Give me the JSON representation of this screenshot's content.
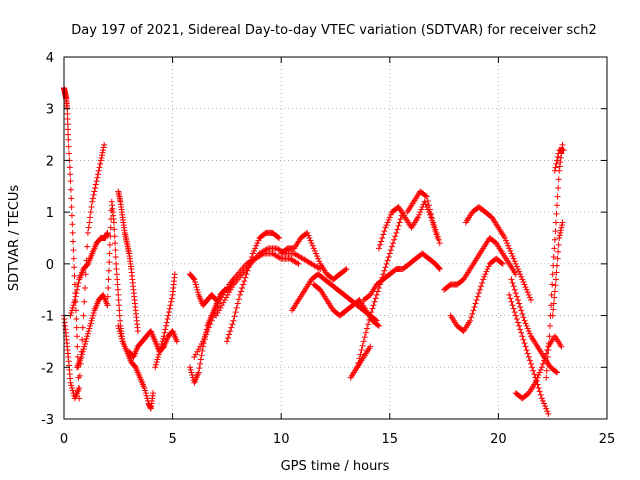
{
  "chart_data": {
    "type": "scatter",
    "title": "Day 197 of 2021, Sidereal Day-to-day VTEC variation (SDTVAR) for receiver sch2",
    "xlabel": "GPS time / hours",
    "ylabel": "SDTVAR / TECUs",
    "xlim": [
      0,
      25
    ],
    "ylim": [
      -3,
      4
    ],
    "x_ticks": [
      "0",
      "5",
      "10",
      "15",
      "20",
      "25"
    ],
    "y_ticks": [
      "-3",
      "-2",
      "-1",
      "0",
      "1",
      "2",
      "3",
      "4"
    ],
    "x_tick_values": [
      0,
      5,
      10,
      15,
      20,
      25
    ],
    "y_tick_values": [
      -3,
      -2,
      -1,
      0,
      1,
      2,
      3,
      4
    ],
    "grid": true,
    "marker": "+",
    "color": "#ff0000",
    "series": [
      {
        "name": "trace-1",
        "x": [
          0.0,
          0.05,
          0.1,
          0.15,
          0.2,
          0.3,
          0.4,
          0.5,
          0.6,
          0.7
        ],
        "y": [
          3.4,
          3.3,
          3.2,
          3.0,
          2.4,
          1.6,
          0.6,
          -0.4,
          -1.4,
          -2.6
        ]
      },
      {
        "name": "trace-2",
        "x": [
          0.0,
          0.1,
          0.2,
          0.3,
          0.5,
          0.7,
          0.9,
          1.1,
          1.3,
          1.5,
          1.7,
          1.85
        ],
        "y": [
          -1.0,
          -1.4,
          -1.8,
          -2.3,
          -2.6,
          -2.4,
          -1.0,
          0.6,
          1.2,
          1.6,
          2.0,
          2.3
        ]
      },
      {
        "name": "trace-3",
        "x": [
          0.3,
          0.5,
          0.7,
          0.9,
          1.1,
          1.3,
          1.5,
          1.7,
          1.9,
          2.0
        ],
        "y": [
          -1.0,
          -0.7,
          -0.3,
          -0.1,
          0.0,
          0.2,
          0.4,
          0.5,
          0.5,
          0.6
        ]
      },
      {
        "name": "trace-4",
        "x": [
          0.6,
          0.8,
          1.0,
          1.2,
          1.4,
          1.6,
          1.8,
          2.0
        ],
        "y": [
          -2.0,
          -1.8,
          -1.5,
          -1.2,
          -0.9,
          -0.7,
          -0.6,
          -0.8
        ]
      },
      {
        "name": "trace-5",
        "x": [
          2.0,
          2.1,
          2.2,
          2.3,
          2.4,
          2.5,
          2.6,
          2.7
        ],
        "y": [
          -0.8,
          0.2,
          1.2,
          0.8,
          0.0,
          -0.6,
          -1.2,
          -1.5
        ]
      },
      {
        "name": "trace-6",
        "x": [
          2.5,
          2.6,
          2.7,
          2.8,
          2.9,
          3.0,
          3.1,
          3.2,
          3.3,
          3.4
        ],
        "y": [
          1.4,
          1.2,
          0.9,
          0.6,
          0.4,
          0.2,
          -0.1,
          -0.5,
          -0.9,
          -1.3
        ]
      },
      {
        "name": "trace-7",
        "x": [
          2.5,
          2.7,
          2.9,
          3.1,
          3.3,
          3.5,
          3.7,
          3.9,
          4.0,
          4.1
        ],
        "y": [
          -1.2,
          -1.5,
          -1.7,
          -1.9,
          -2.0,
          -2.2,
          -2.4,
          -2.7,
          -2.8,
          -2.5
        ]
      },
      {
        "name": "trace-8",
        "x": [
          3.0,
          3.2,
          3.4,
          3.6,
          3.8,
          4.0,
          4.2,
          4.4,
          4.6,
          4.8,
          5.0,
          5.2
        ],
        "y": [
          -1.7,
          -1.8,
          -1.6,
          -1.5,
          -1.4,
          -1.3,
          -1.5,
          -1.7,
          -1.6,
          -1.4,
          -1.3,
          -1.5
        ]
      },
      {
        "name": "trace-9",
        "x": [
          4.2,
          4.4,
          4.6,
          4.8,
          5.0,
          5.1
        ],
        "y": [
          -2.0,
          -1.7,
          -1.4,
          -1.0,
          -0.6,
          -0.2
        ]
      },
      {
        "name": "trace-10",
        "x": [
          5.8,
          6.0,
          6.2,
          6.4,
          6.6,
          6.8,
          7.0,
          7.2,
          7.4,
          7.6,
          7.8
        ],
        "y": [
          -2.0,
          -2.3,
          -2.1,
          -1.6,
          -1.2,
          -1.0,
          -0.8,
          -0.6,
          -0.5,
          -0.5,
          -0.3
        ]
      },
      {
        "name": "trace-11",
        "x": [
          5.8,
          6.0,
          6.2,
          6.4,
          6.6,
          6.8,
          7.0
        ],
        "y": [
          -0.2,
          -0.3,
          -0.6,
          -0.8,
          -0.7,
          -0.6,
          -0.7
        ]
      },
      {
        "name": "trace-12",
        "x": [
          6.0,
          6.4,
          6.8,
          7.2,
          7.6,
          8.0,
          8.4,
          8.8,
          9.2,
          9.6,
          10.0,
          10.4,
          10.8
        ],
        "y": [
          -1.8,
          -1.5,
          -1.1,
          -0.7,
          -0.4,
          -0.2,
          0.0,
          0.1,
          0.2,
          0.2,
          0.1,
          0.1,
          0.0
        ]
      },
      {
        "name": "trace-13",
        "x": [
          7.0,
          7.4,
          7.8,
          8.2,
          8.6,
          9.0,
          9.4,
          9.8,
          10.2,
          10.6,
          11.0,
          11.4,
          11.8
        ],
        "y": [
          -1.0,
          -0.7,
          -0.4,
          -0.2,
          0.0,
          0.2,
          0.3,
          0.3,
          0.2,
          0.2,
          0.1,
          0.0,
          -0.1
        ]
      },
      {
        "name": "trace-14",
        "x": [
          7.5,
          7.8,
          8.1,
          8.4,
          8.7,
          9.0,
          9.3,
          9.6,
          9.9
        ],
        "y": [
          -1.5,
          -1.1,
          -0.6,
          -0.2,
          0.2,
          0.5,
          0.6,
          0.6,
          0.5
        ]
      },
      {
        "name": "trace-15",
        "x": [
          10.0,
          10.3,
          10.6,
          10.9,
          11.2,
          11.5,
          11.8,
          12.1,
          12.4,
          12.7,
          13.0
        ],
        "y": [
          0.2,
          0.3,
          0.3,
          0.5,
          0.6,
          0.3,
          0.0,
          -0.2,
          -0.3,
          -0.2,
          -0.1
        ]
      },
      {
        "name": "trace-16",
        "x": [
          10.5,
          10.8,
          11.1,
          11.4,
          11.7,
          12.0,
          12.3,
          12.6,
          12.9,
          13.2,
          13.5,
          13.8,
          14.1,
          14.4
        ],
        "y": [
          -0.9,
          -0.7,
          -0.5,
          -0.3,
          -0.2,
          -0.3,
          -0.4,
          -0.5,
          -0.6,
          -0.7,
          -0.8,
          -0.9,
          -1.0,
          -1.1
        ]
      },
      {
        "name": "trace-17",
        "x": [
          11.5,
          11.8,
          12.1,
          12.4,
          12.7,
          13.0,
          13.3,
          13.6,
          13.9,
          14.2,
          14.5
        ],
        "y": [
          -0.4,
          -0.5,
          -0.7,
          -0.9,
          -1.0,
          -0.9,
          -0.8,
          -0.7,
          -0.9,
          -1.1,
          -1.2
        ]
      },
      {
        "name": "trace-18",
        "x": [
          13.2,
          13.5,
          13.8,
          14.1
        ],
        "y": [
          -2.2,
          -2.0,
          -1.8,
          -1.6
        ]
      },
      {
        "name": "trace-19",
        "x": [
          13.5,
          13.8,
          14.1,
          14.4,
          14.7,
          15.0,
          15.3,
          15.6
        ],
        "y": [
          -2.0,
          -1.5,
          -1.0,
          -0.6,
          -0.2,
          0.2,
          0.6,
          1.0
        ]
      },
      {
        "name": "trace-20",
        "x": [
          13.8,
          14.1,
          14.4,
          14.7,
          15.0,
          15.3,
          15.6,
          15.9,
          16.2,
          16.5,
          16.8,
          17.1,
          17.3
        ],
        "y": [
          -0.7,
          -0.6,
          -0.4,
          -0.3,
          -0.2,
          -0.1,
          -0.1,
          0.0,
          0.1,
          0.2,
          0.1,
          0.0,
          -0.1
        ]
      },
      {
        "name": "trace-21",
        "x": [
          14.5,
          14.8,
          15.1,
          15.4,
          15.7,
          16.0,
          16.3,
          16.6,
          16.9,
          17.2
        ],
        "y": [
          0.3,
          0.7,
          1.0,
          1.1,
          0.9,
          0.7,
          0.9,
          1.2,
          0.9,
          0.5
        ]
      },
      {
        "name": "trace-22",
        "x": [
          15.8,
          16.1,
          16.4,
          16.7,
          17.0,
          17.3
        ],
        "y": [
          1.0,
          1.2,
          1.4,
          1.3,
          0.8,
          0.4
        ]
      },
      {
        "name": "trace-23",
        "x": [
          17.5,
          17.8,
          18.1,
          18.4,
          18.7,
          19.0,
          19.3,
          19.6,
          19.9,
          20.2,
          20.5,
          20.8
        ],
        "y": [
          -0.5,
          -0.4,
          -0.4,
          -0.3,
          -0.1,
          0.1,
          0.3,
          0.5,
          0.4,
          0.2,
          0.0,
          -0.2
        ]
      },
      {
        "name": "trace-24",
        "x": [
          17.8,
          18.1,
          18.4,
          18.7,
          19.0,
          19.3,
          19.6,
          19.9,
          20.2
        ],
        "y": [
          -1.0,
          -1.2,
          -1.3,
          -1.1,
          -0.7,
          -0.3,
          0.0,
          0.1,
          0.0
        ]
      },
      {
        "name": "trace-25",
        "x": [
          18.5,
          18.8,
          19.1,
          19.4,
          19.7,
          20.0,
          20.3,
          20.6,
          20.9,
          21.2,
          21.5
        ],
        "y": [
          0.8,
          1.0,
          1.1,
          1.0,
          0.9,
          0.7,
          0.5,
          0.2,
          -0.1,
          -0.4,
          -0.7
        ]
      },
      {
        "name": "trace-26",
        "x": [
          20.5,
          20.8,
          21.1,
          21.4,
          21.7,
          22.0,
          22.3
        ],
        "y": [
          -0.6,
          -1.0,
          -1.4,
          -1.8,
          -2.2,
          -2.6,
          -2.9
        ]
      },
      {
        "name": "trace-27",
        "x": [
          20.6,
          20.9,
          21.2,
          21.5,
          21.8,
          22.1,
          22.4,
          22.7
        ],
        "y": [
          -0.3,
          -0.7,
          -1.1,
          -1.4,
          -1.6,
          -1.8,
          -2.0,
          -2.1
        ]
      },
      {
        "name": "trace-28",
        "x": [
          20.8,
          21.1,
          21.4,
          21.7,
          22.0,
          22.3,
          22.6,
          22.9
        ],
        "y": [
          -2.5,
          -2.6,
          -2.5,
          -2.3,
          -2.0,
          -1.6,
          -1.4,
          -1.6
        ]
      },
      {
        "name": "trace-29",
        "x": [
          22.2,
          22.35,
          22.5,
          22.65,
          22.8,
          22.95
        ],
        "y": [
          -2.2,
          -1.4,
          -0.2,
          0.8,
          1.8,
          2.3
        ]
      },
      {
        "name": "trace-30",
        "x": [
          22.5,
          22.65,
          22.8,
          22.95
        ],
        "y": [
          -1.0,
          -0.3,
          0.5,
          0.8
        ]
      },
      {
        "name": "trace-31",
        "x": [
          22.6,
          22.8,
          23.0
        ],
        "y": [
          1.8,
          2.2,
          2.2
        ]
      }
    ]
  }
}
